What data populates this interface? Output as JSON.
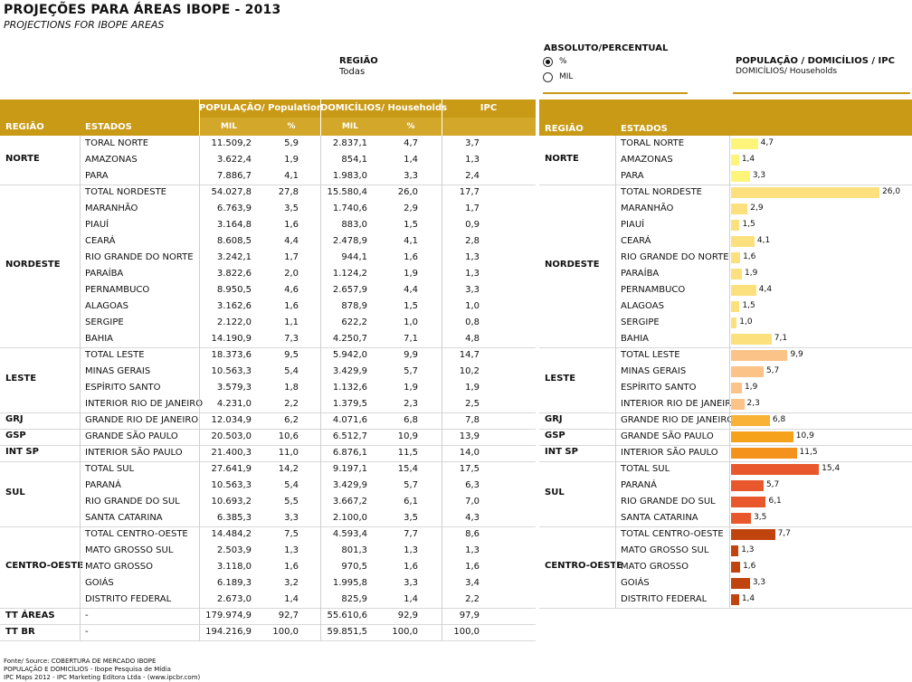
{
  "header": {
    "title": "PROJEÇÕES PARA ÁREAS IBOPE - 2013",
    "subtitle": "PROJECTIONS FOR IBOPE AREAS",
    "regiao_label": "REGIÃO",
    "regiao_value": "Todas",
    "abs_label": "ABSOLUTO/PERCENTUAL",
    "radio_pct": "%",
    "radio_mil": "MIL",
    "pop_label": "POPULAÇÃO / DOMICÍLIOS / IPC",
    "pop_sub": "DOMICÍLIOS/ Households"
  },
  "table": {
    "headers": {
      "regiao": "REGIÃO",
      "estados": "ESTADOS",
      "populacao": "POPULAÇÃO/ Population",
      "domicilios": "DOMICÍLIOS/ Households",
      "ipc": "IPC",
      "mil": "MIL",
      "pct": "%"
    },
    "regions": [
      {
        "name": "NORTE",
        "rows": [
          {
            "estado": "TORAL NORTE",
            "pop_mil": "11.509,2",
            "pop_pct": "5,9",
            "dom_mil": "2.837,1",
            "dom_pct": "4,7",
            "ipc": "3,7"
          },
          {
            "estado": "AMAZONAS",
            "pop_mil": "3.622,4",
            "pop_pct": "1,9",
            "dom_mil": "854,1",
            "dom_pct": "1,4",
            "ipc": "1,3"
          },
          {
            "estado": "PARA",
            "pop_mil": "7.886,7",
            "pop_pct": "4,1",
            "dom_mil": "1.983,0",
            "dom_pct": "3,3",
            "ipc": "2,4"
          }
        ]
      },
      {
        "name": "NORDESTE",
        "rows": [
          {
            "estado": "TOTAL NORDESTE",
            "pop_mil": "54.027,8",
            "pop_pct": "27,8",
            "dom_mil": "15.580,4",
            "dom_pct": "26,0",
            "ipc": "17,7"
          },
          {
            "estado": "MARANHÃO",
            "pop_mil": "6.763,9",
            "pop_pct": "3,5",
            "dom_mil": "1.740,6",
            "dom_pct": "2,9",
            "ipc": "1,7"
          },
          {
            "estado": "PIAUÍ",
            "pop_mil": "3.164,8",
            "pop_pct": "1,6",
            "dom_mil": "883,0",
            "dom_pct": "1,5",
            "ipc": "0,9"
          },
          {
            "estado": "CEARÁ",
            "pop_mil": "8.608,5",
            "pop_pct": "4,4",
            "dom_mil": "2.478,9",
            "dom_pct": "4,1",
            "ipc": "2,8"
          },
          {
            "estado": "RIO GRANDE DO NORTE",
            "pop_mil": "3.242,1",
            "pop_pct": "1,7",
            "dom_mil": "944,1",
            "dom_pct": "1,6",
            "ipc": "1,3"
          },
          {
            "estado": "PARAÍBA",
            "pop_mil": "3.822,6",
            "pop_pct": "2,0",
            "dom_mil": "1.124,2",
            "dom_pct": "1,9",
            "ipc": "1,3"
          },
          {
            "estado": "PERNAMBUCO",
            "pop_mil": "8.950,5",
            "pop_pct": "4,6",
            "dom_mil": "2.657,9",
            "dom_pct": "4,4",
            "ipc": "3,3"
          },
          {
            "estado": "ALAGOAS",
            "pop_mil": "3.162,6",
            "pop_pct": "1,6",
            "dom_mil": "878,9",
            "dom_pct": "1,5",
            "ipc": "1,0"
          },
          {
            "estado": "SERGIPE",
            "pop_mil": "2.122,0",
            "pop_pct": "1,1",
            "dom_mil": "622,2",
            "dom_pct": "1,0",
            "ipc": "0,8"
          },
          {
            "estado": "BAHIA",
            "pop_mil": "14.190,9",
            "pop_pct": "7,3",
            "dom_mil": "4.250,7",
            "dom_pct": "7,1",
            "ipc": "4,8"
          }
        ]
      },
      {
        "name": "LESTE",
        "rows": [
          {
            "estado": "TOTAL LESTE",
            "pop_mil": "18.373,6",
            "pop_pct": "9,5",
            "dom_mil": "5.942,0",
            "dom_pct": "9,9",
            "ipc": "14,7"
          },
          {
            "estado": "MINAS GERAIS",
            "pop_mil": "10.563,3",
            "pop_pct": "5,4",
            "dom_mil": "3.429,9",
            "dom_pct": "5,7",
            "ipc": "10,2"
          },
          {
            "estado": "ESPÍRITO SANTO",
            "pop_mil": "3.579,3",
            "pop_pct": "1,8",
            "dom_mil": "1.132,6",
            "dom_pct": "1,9",
            "ipc": "1,9"
          },
          {
            "estado": "INTERIOR RIO DE JANEIRO",
            "pop_mil": "4.231,0",
            "pop_pct": "2,2",
            "dom_mil": "1.379,5",
            "dom_pct": "2,3",
            "ipc": "2,5"
          }
        ]
      },
      {
        "name": "GRJ",
        "rows": [
          {
            "estado": "GRANDE RIO DE JANEIRO",
            "pop_mil": "12.034,9",
            "pop_pct": "6,2",
            "dom_mil": "4.071,6",
            "dom_pct": "6,8",
            "ipc": "7,8"
          }
        ]
      },
      {
        "name": "GSP",
        "rows": [
          {
            "estado": "GRANDE SÃO PAULO",
            "pop_mil": "20.503,0",
            "pop_pct": "10,6",
            "dom_mil": "6.512,7",
            "dom_pct": "10,9",
            "ipc": "13,9"
          }
        ]
      },
      {
        "name": "INT SP",
        "rows": [
          {
            "estado": "INTERIOR SÃO PAULO",
            "pop_mil": "21.400,3",
            "pop_pct": "11,0",
            "dom_mil": "6.876,1",
            "dom_pct": "11,5",
            "ipc": "14,0"
          }
        ]
      },
      {
        "name": "SUL",
        "rows": [
          {
            "estado": "TOTAL SUL",
            "pop_mil": "27.641,9",
            "pop_pct": "14,2",
            "dom_mil": "9.197,1",
            "dom_pct": "15,4",
            "ipc": "17,5"
          },
          {
            "estado": "PARANÁ",
            "pop_mil": "10.563,3",
            "pop_pct": "5,4",
            "dom_mil": "3.429,9",
            "dom_pct": "5,7",
            "ipc": "6,3"
          },
          {
            "estado": "RIO GRANDE DO SUL",
            "pop_mil": "10.693,2",
            "pop_pct": "5,5",
            "dom_mil": "3.667,2",
            "dom_pct": "6,1",
            "ipc": "7,0"
          },
          {
            "estado": "SANTA CATARINA",
            "pop_mil": "6.385,3",
            "pop_pct": "3,3",
            "dom_mil": "2.100,0",
            "dom_pct": "3,5",
            "ipc": "4,3"
          }
        ]
      },
      {
        "name": "CENTRO-OESTE",
        "rows": [
          {
            "estado": "TOTAL CENTRO-OESTE",
            "pop_mil": "14.484,2",
            "pop_pct": "7,5",
            "dom_mil": "4.593,4",
            "dom_pct": "7,7",
            "ipc": "8,6"
          },
          {
            "estado": "MATO GROSSO SUL",
            "pop_mil": "2.503,9",
            "pop_pct": "1,3",
            "dom_mil": "801,3",
            "dom_pct": "1,3",
            "ipc": "1,3"
          },
          {
            "estado": "MATO GROSSO",
            "pop_mil": "3.118,0",
            "pop_pct": "1,6",
            "dom_mil": "970,5",
            "dom_pct": "1,6",
            "ipc": "1,6"
          },
          {
            "estado": "GOIÁS",
            "pop_mil": "6.189,3",
            "pop_pct": "3,2",
            "dom_mil": "1.995,8",
            "dom_pct": "3,3",
            "ipc": "3,4"
          },
          {
            "estado": "DISTRITO FEDERAL",
            "pop_mil": "2.673,0",
            "pop_pct": "1,4",
            "dom_mil": "825,9",
            "dom_pct": "1,4",
            "ipc": "2,2"
          }
        ]
      }
    ],
    "totals": [
      {
        "name": "TT ÁREAS",
        "estado": "-",
        "pop_mil": "179.974,9",
        "pop_pct": "92,7",
        "dom_mil": "55.610,6",
        "dom_pct": "92,9",
        "ipc": "97,9"
      },
      {
        "name": "TT BR",
        "estado": "-",
        "pop_mil": "194.216,9",
        "pop_pct": "100,0",
        "dom_mil": "59.851,5",
        "dom_pct": "100,0",
        "ipc": "100,0"
      }
    ]
  },
  "chart_data": {
    "type": "bar",
    "orientation": "horizontal",
    "title": "POPULAÇÃO / DOMICÍLIOS / IPC",
    "subtitle": "DOMICÍLIOS/ Households",
    "headers": {
      "regiao": "REGIÃO",
      "estados": "ESTADOS"
    },
    "groups": [
      {
        "name": "NORTE",
        "color": "#fdf57a",
        "categories": [
          "TORAL NORTE",
          "AMAZONAS",
          "PARA"
        ],
        "values": [
          4.7,
          1.4,
          3.3
        ],
        "labels": [
          "4,7",
          "1,4",
          "3,3"
        ]
      },
      {
        "name": "NORDESTE",
        "color": "#fde07e",
        "categories": [
          "TOTAL NORDESTE",
          "MARANHÃO",
          "PIAUÍ",
          "CEARÁ",
          "RIO GRANDE DO NORTE",
          "PARAÍBA",
          "PERNAMBUCO",
          "ALAGOAS",
          "SERGIPE",
          "BAHIA"
        ],
        "values": [
          26.0,
          2.9,
          1.5,
          4.1,
          1.6,
          1.9,
          4.4,
          1.5,
          1.0,
          7.1
        ],
        "labels": [
          "26,0",
          "2,9",
          "1,5",
          "4,1",
          "1,6",
          "1,9",
          "4,4",
          "1,5",
          "1,0",
          "7,1"
        ]
      },
      {
        "name": "LESTE",
        "color": "#fbc388",
        "categories": [
          "TOTAL LESTE",
          "MINAS GERAIS",
          "ESPÍRITO SANTO",
          "INTERIOR RIO DE JANEIRO"
        ],
        "values": [
          9.9,
          5.7,
          1.9,
          2.3
        ],
        "labels": [
          "9,9",
          "5,7",
          "1,9",
          "2,3"
        ]
      },
      {
        "name": "GRJ",
        "color": "#f9b136",
        "categories": [
          "GRANDE RIO DE JANEIRO"
        ],
        "values": [
          6.8
        ],
        "labels": [
          "6,8"
        ]
      },
      {
        "name": "GSP",
        "color": "#f7a21b",
        "categories": [
          "GRANDE SÃO PAULO"
        ],
        "values": [
          10.9
        ],
        "labels": [
          "10,9"
        ]
      },
      {
        "name": "INT SP",
        "color": "#f4921c",
        "categories": [
          "INTERIOR SÃO PAULO"
        ],
        "values": [
          11.5
        ],
        "labels": [
          "11,5"
        ]
      },
      {
        "name": "SUL",
        "color": "#e9582c",
        "categories": [
          "TOTAL SUL",
          "PARANÁ",
          "RIO GRANDE DO SUL",
          "SANTA CATARINA"
        ],
        "values": [
          15.4,
          5.7,
          6.1,
          3.5
        ],
        "labels": [
          "15,4",
          "5,7",
          "6,1",
          "3,5"
        ]
      },
      {
        "name": "CENTRO-OESTE",
        "color": "#c1440e",
        "categories": [
          "TOTAL CENTRO-OESTE",
          "MATO GROSSO SUL",
          "MATO GROSSO",
          "GOIÁS",
          "DISTRITO FEDERAL"
        ],
        "values": [
          7.7,
          1.3,
          1.6,
          3.3,
          1.4
        ],
        "labels": [
          "7,7",
          "1,3",
          "1,6",
          "3,3",
          "1,4"
        ]
      }
    ],
    "xlim": [
      0,
      26
    ],
    "grid": false,
    "legend": "none"
  },
  "footer": {
    "line1": "Fonte/ Source: COBERTURA DE MERCADO IBOPE",
    "line2": "POPULAÇÃO E DOMICÍLIOS - Ibope Pesquisa de Mídia",
    "line3": "IPC Maps 2012 - IPC Marketing Editora Ltda - (www.ipcbr.com)"
  },
  "colors": {
    "header_bg": "#c99a16",
    "header_sub_bg": "#d2a72a",
    "header_text": "#ffffff"
  }
}
